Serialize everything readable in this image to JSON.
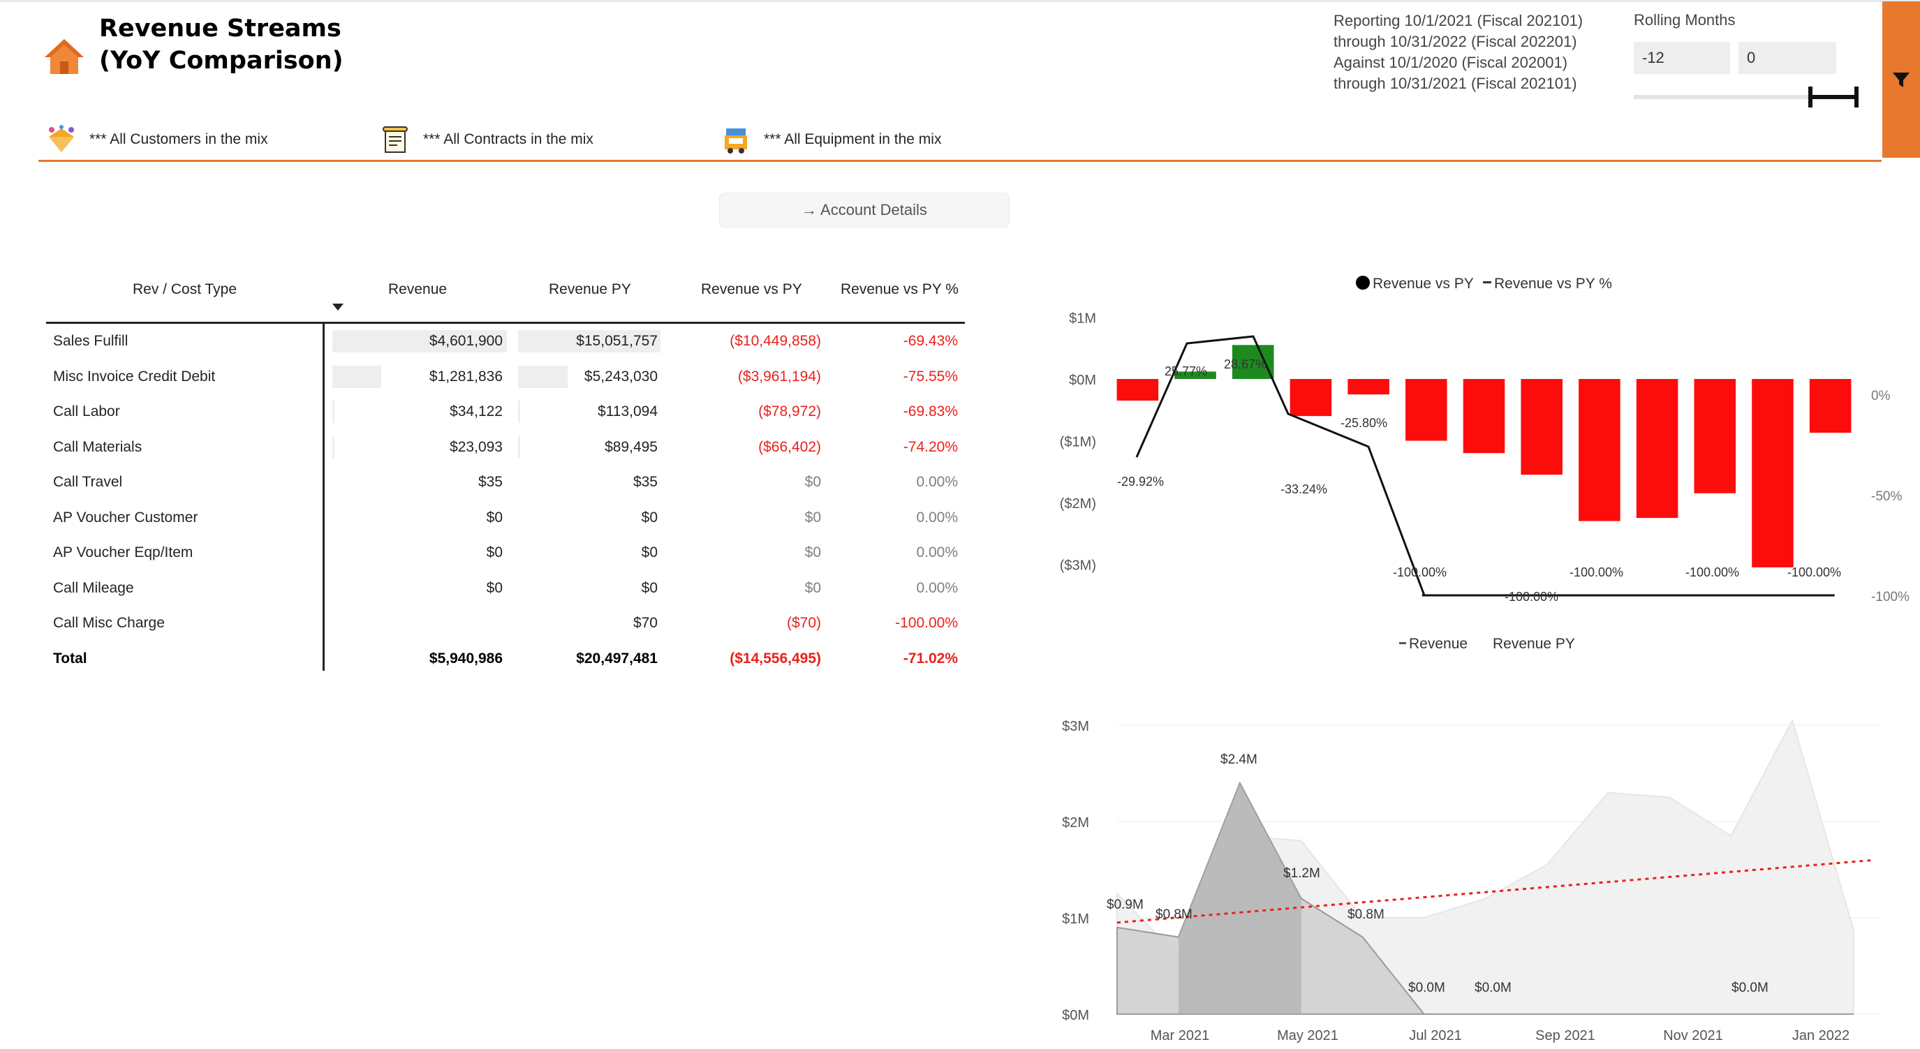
{
  "header": {
    "title_line1": "Revenue Streams",
    "title_line2": "(YoY Comparison)"
  },
  "filters": {
    "customers": "*** All Customers in the mix",
    "contracts": "*** All Contracts in the mix",
    "equipment": "*** All Equipment in the mix"
  },
  "reporting": {
    "text": "Reporting 10/1/2021 (Fiscal 202101)\nthrough 10/31/2022 (Fiscal 202201)\nAgainst 10/1/2020 (Fiscal 202001)\nthrough 10/31/2021 (Fiscal 202101)"
  },
  "rolling": {
    "label": "Rolling Months",
    "from": "-12",
    "to": "0"
  },
  "account_details_label": "→ Account Details",
  "table": {
    "columns": [
      "Rev / Cost Type",
      "Revenue",
      "Revenue PY",
      "Revenue vs PY",
      "Revenue vs PY %"
    ],
    "rows": [
      {
        "name": "Sales Fulfill",
        "revenue": "$4,601,900",
        "revenue_py": "$15,051,757",
        "vs_py": "($10,449,858)",
        "vs_py_pct": "-69.43%",
        "rev_bar": 1.0,
        "py_bar": 1.0
      },
      {
        "name": "Misc Invoice Credit Debit",
        "revenue": "$1,281,836",
        "revenue_py": "$5,243,030",
        "vs_py": "($3,961,194)",
        "vs_py_pct": "-75.55%",
        "rev_bar": 0.279,
        "py_bar": 0.348
      },
      {
        "name": "Call Labor",
        "revenue": "$34,122",
        "revenue_py": "$113,094",
        "vs_py": "($78,972)",
        "vs_py_pct": "-69.83%",
        "rev_bar": 0.007,
        "py_bar": 0.008
      },
      {
        "name": "Call Materials",
        "revenue": "$23,093",
        "revenue_py": "$89,495",
        "vs_py": "($66,402)",
        "vs_py_pct": "-74.20%",
        "rev_bar": 0.005,
        "py_bar": 0.006
      },
      {
        "name": "Call Travel",
        "revenue": "$35",
        "revenue_py": "$35",
        "vs_py": "$0",
        "vs_py_pct": "0.00%",
        "rev_bar": 0,
        "py_bar": 0
      },
      {
        "name": "AP Voucher Customer",
        "revenue": "$0",
        "revenue_py": "$0",
        "vs_py": "$0",
        "vs_py_pct": "0.00%",
        "rev_bar": 0,
        "py_bar": 0
      },
      {
        "name": "AP Voucher Eqp/Item",
        "revenue": "$0",
        "revenue_py": "$0",
        "vs_py": "$0",
        "vs_py_pct": "0.00%",
        "rev_bar": 0,
        "py_bar": 0
      },
      {
        "name": "Call Mileage",
        "revenue": "$0",
        "revenue_py": "$0",
        "vs_py": "$0",
        "vs_py_pct": "0.00%",
        "rev_bar": 0,
        "py_bar": 0
      },
      {
        "name": "Call Misc Charge",
        "revenue": "",
        "revenue_py": "$70",
        "vs_py": "($70)",
        "vs_py_pct": "-100.00%",
        "rev_bar": 0,
        "py_bar": 0
      }
    ],
    "total": {
      "name": "Total",
      "revenue": "$5,940,986",
      "revenue_py": "$20,497,481",
      "vs_py": "($14,556,495)",
      "vs_py_pct": "-71.02%"
    }
  },
  "chart_data": [
    {
      "type": "bar",
      "legend": [
        "Revenue vs PY",
        "Revenue vs PY %"
      ],
      "y_ticks": [
        "$1M",
        "$0M",
        "($1M)",
        "($2M)",
        "($3M)"
      ],
      "y2_ticks": [
        "0%",
        "-50%",
        "-100%"
      ],
      "ylim": [
        -3,
        1
      ],
      "y2lim": [
        -100,
        20
      ],
      "series": [
        {
          "name": "Revenue vs PY",
          "values": [
            -0.35,
            0.12,
            0.55,
            -0.6,
            -0.25,
            -1.0,
            -1.2,
            -1.55,
            -2.3,
            -2.25,
            -1.85,
            -3.05,
            -0.87
          ]
        },
        {
          "name": "Revenue vs PY %",
          "values": [
            -29.92,
            25.77,
            28.67,
            -33.24,
            -25.8,
            -100,
            -100,
            -100,
            -100,
            -100,
            -100,
            -100,
            -100
          ]
        }
      ],
      "data_labels": [
        "-29.92%",
        "25.77%",
        "28.67%",
        "-33.24%",
        "-25.80%",
        "-100.00%",
        "-100.00%",
        "-100.00%",
        "-100.00%",
        "-100.00%"
      ]
    },
    {
      "type": "area",
      "legend": [
        "Revenue",
        "Revenue PY"
      ],
      "x_ticks": [
        "Mar 2021",
        "May 2021",
        "Jul 2021",
        "Sep 2021",
        "Nov 2021",
        "Jan 2022"
      ],
      "y_ticks": [
        "$3M",
        "$2M",
        "$1M",
        "$0M"
      ],
      "ylim": [
        0,
        3.1
      ],
      "series": [
        {
          "name": "Revenue",
          "values": [
            0.9,
            0.8,
            2.4,
            1.2,
            0.8,
            0.0,
            0.0,
            0.0,
            0.0,
            0.0,
            0.0,
            0.0,
            0.0
          ]
        },
        {
          "name": "Revenue PY",
          "values": [
            1.25,
            0.6,
            1.85,
            1.8,
            1.0,
            1.0,
            1.2,
            1.55,
            2.3,
            2.25,
            1.85,
            3.05,
            0.87
          ]
        }
      ],
      "trend": [
        0.95,
        1.6
      ],
      "data_labels": [
        "$0.9M",
        "$0.8M",
        "$2.4M",
        "$1.2M",
        "$0.8M",
        "$0.0M",
        "$0.0M",
        "$0.0M"
      ]
    }
  ],
  "colors": {
    "accent": "#e8782e",
    "negative": "#e8221c",
    "positive": "#1e8a1e",
    "bar_neg": "#fd0c0c"
  }
}
